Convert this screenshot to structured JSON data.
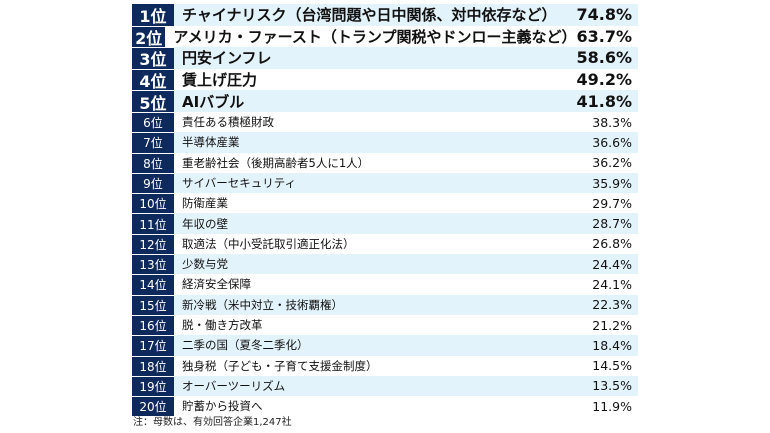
{
  "chart_data": {
    "type": "table",
    "columns": [
      "rank",
      "item",
      "value"
    ],
    "rows": [
      {
        "rank": "1位",
        "label": "チャイナリスク（台湾問題や日中関係、対中依存など）",
        "value": "74.8%",
        "top": true
      },
      {
        "rank": "2位",
        "label": "アメリカ・ファースト（トランプ関税やドンロー主義など）",
        "value": "63.7%",
        "top": true
      },
      {
        "rank": "3位",
        "label": "円安インフレ",
        "value": "58.6%",
        "top": true
      },
      {
        "rank": "4位",
        "label": "賃上げ圧力",
        "value": "49.2%",
        "top": true
      },
      {
        "rank": "5位",
        "label": "AIバブル",
        "value": "41.8%",
        "top": true
      },
      {
        "rank": "6位",
        "label": "責任ある積極財政",
        "value": "38.3%",
        "top": false
      },
      {
        "rank": "7位",
        "label": "半導体産業",
        "value": "36.6%",
        "top": false
      },
      {
        "rank": "8位",
        "label": "重老齢社会（後期高齢者5人に1人）",
        "value": "36.2%",
        "top": false
      },
      {
        "rank": "9位",
        "label": "サイバーセキュリティ",
        "value": "35.9%",
        "top": false
      },
      {
        "rank": "10位",
        "label": "防衛産業",
        "value": "29.7%",
        "top": false
      },
      {
        "rank": "11位",
        "label": "年収の壁",
        "value": "28.7%",
        "top": false
      },
      {
        "rank": "12位",
        "label": "取適法（中小受託取引適正化法）",
        "value": "26.8%",
        "top": false
      },
      {
        "rank": "13位",
        "label": "少数与党",
        "value": "24.4%",
        "top": false
      },
      {
        "rank": "14位",
        "label": "経済安全保障",
        "value": "24.1%",
        "top": false
      },
      {
        "rank": "15位",
        "label": "新冷戦（米中対立・技術覇権）",
        "value": "22.3%",
        "top": false
      },
      {
        "rank": "16位",
        "label": "脱・働き方改革",
        "value": "21.2%",
        "top": false
      },
      {
        "rank": "17位",
        "label": "二季の国（夏冬二季化）",
        "value": "18.4%",
        "top": false
      },
      {
        "rank": "18位",
        "label": "独身税（子ども・子育て支援金制度）",
        "value": "14.5%",
        "top": false
      },
      {
        "rank": "19位",
        "label": "オーバーツーリズム",
        "value": "13.5%",
        "top": false
      },
      {
        "rank": "20位",
        "label": "貯蓄から投資へ",
        "value": "11.9%",
        "top": false
      }
    ]
  },
  "note": "注：母数は、有効回答企業1,247社",
  "colors": {
    "rank_bg": "#0e2a5c",
    "row_a": "#e3f3fb",
    "row_b": "#ffffff"
  }
}
